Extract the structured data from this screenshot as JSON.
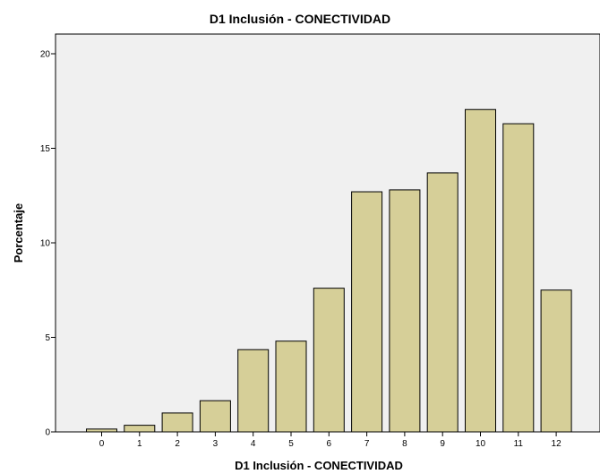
{
  "chart_data": {
    "type": "bar",
    "title": "D1 Inclusión - CONECTIVIDAD",
    "xlabel": "D1 Inclusión - CONECTIVIDAD",
    "ylabel": "Porcentaje",
    "categories": [
      "0",
      "1",
      "2",
      "3",
      "4",
      "5",
      "6",
      "7",
      "8",
      "9",
      "10",
      "11",
      "12"
    ],
    "values": [
      0.15,
      0.35,
      1.0,
      1.65,
      4.35,
      4.8,
      7.6,
      12.7,
      12.8,
      13.7,
      17.05,
      16.3,
      7.5
    ],
    "ylim": [
      0,
      20
    ],
    "yticks": [
      "0",
      "5",
      "10",
      "15",
      "20"
    ],
    "grid": false,
    "bar_color": "#d6cf98",
    "plot_background": "#f0f0f0"
  }
}
